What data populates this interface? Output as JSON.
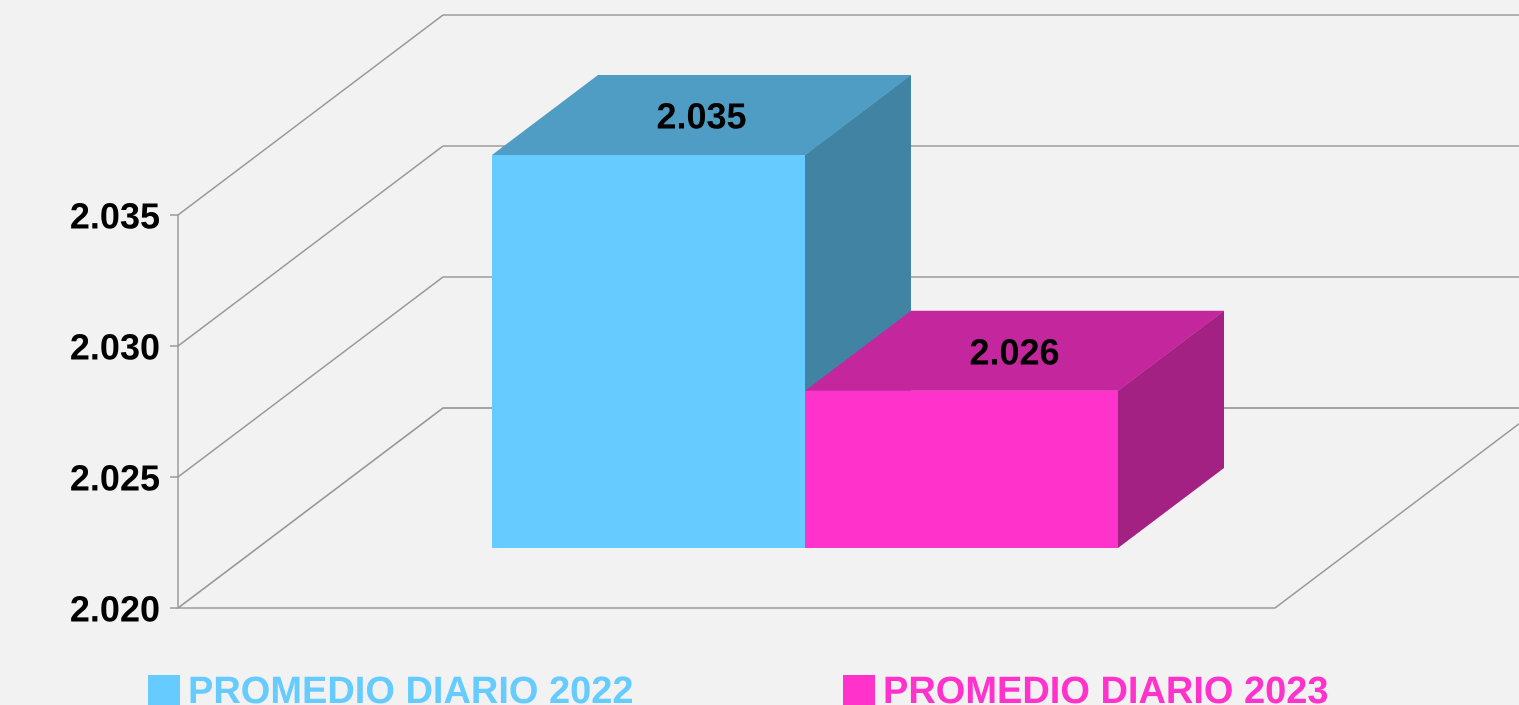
{
  "chart_data": {
    "type": "bar3d",
    "series": [
      {
        "name": "PROMEDIO DIARIO 2022",
        "color": "#66ccff",
        "values": [
          2.035
        ]
      },
      {
        "name": "PROMEDIO DIARIO 2023",
        "color": "#ff33cc",
        "values": [
          2.026
        ]
      }
    ],
    "ylim": [
      2.02,
      2.035
    ],
    "yticks": [
      {
        "value": 2.02,
        "label": "2.020"
      },
      2.025,
      {
        "value": 2.03,
        "label": "2.030"
      },
      2.035
    ],
    "grid": true,
    "legend": "bottom"
  }
}
